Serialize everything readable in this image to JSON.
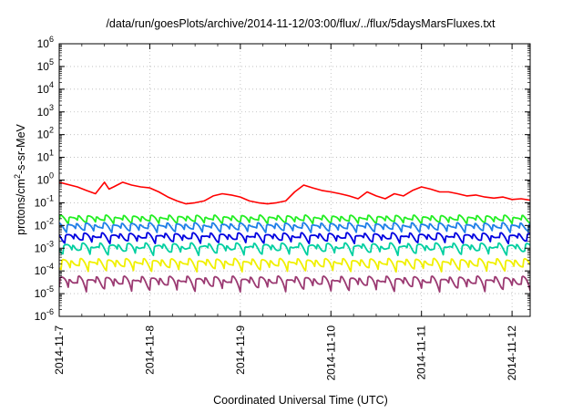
{
  "chart_data": {
    "type": "line",
    "title": "/data/run/goesPlots/archive/2014-11-12/03:00/flux/../flux/5daysMarsFluxes.txt",
    "xlabel": "Coordinated Universal Time (UTC)",
    "ylabel": {
      "base": "protons/cm",
      "sup": "2",
      "rest": "-s-sr-MeV"
    },
    "scale_y": "log",
    "ylim": [
      1e-06,
      1000000.0
    ],
    "y_ticks": [
      {
        "exp": "-6",
        "value": 1e-06
      },
      {
        "exp": "-5",
        "value": 1e-05
      },
      {
        "exp": "-4",
        "value": 0.0001
      },
      {
        "exp": "-3",
        "value": 0.001
      },
      {
        "exp": "-2",
        "value": 0.01
      },
      {
        "exp": "-1",
        "value": 0.1
      },
      {
        "exp": "0",
        "value": 1
      },
      {
        "exp": "1",
        "value": 10
      },
      {
        "exp": "2",
        "value": 100
      },
      {
        "exp": "3",
        "value": 1000
      },
      {
        "exp": "4",
        "value": 10000
      },
      {
        "exp": "5",
        "value": 100000
      },
      {
        "exp": "6",
        "value": 1000000
      }
    ],
    "x_ticks": [
      "2014-11-7",
      "2014-11-8",
      "2014-11-9",
      "2014-11-10",
      "2014-11-11",
      "2014-11-12"
    ],
    "xlim_days": [
      0,
      5.2
    ],
    "grid": true,
    "legend": "none",
    "series": [
      {
        "color": "#ff0000",
        "points": [
          [
            0,
            0.8
          ],
          [
            0.2,
            0.5
          ],
          [
            0.3,
            0.35
          ],
          [
            0.4,
            0.25
          ],
          [
            0.5,
            0.8
          ],
          [
            0.55,
            0.4
          ],
          [
            0.6,
            0.5
          ],
          [
            0.7,
            0.8
          ],
          [
            0.8,
            0.6
          ],
          [
            0.9,
            0.5
          ],
          [
            1.0,
            0.45
          ],
          [
            1.1,
            0.3
          ],
          [
            1.2,
            0.18
          ],
          [
            1.3,
            0.12
          ],
          [
            1.4,
            0.09
          ],
          [
            1.5,
            0.1
          ],
          [
            1.6,
            0.12
          ],
          [
            1.7,
            0.2
          ],
          [
            1.8,
            0.25
          ],
          [
            1.9,
            0.22
          ],
          [
            2.0,
            0.18
          ],
          [
            2.1,
            0.12
          ],
          [
            2.2,
            0.1
          ],
          [
            2.3,
            0.09
          ],
          [
            2.4,
            0.1
          ],
          [
            2.5,
            0.12
          ],
          [
            2.6,
            0.3
          ],
          [
            2.7,
            0.6
          ],
          [
            2.8,
            0.45
          ],
          [
            2.9,
            0.35
          ],
          [
            3.0,
            0.3
          ],
          [
            3.1,
            0.25
          ],
          [
            3.2,
            0.2
          ],
          [
            3.3,
            0.15
          ],
          [
            3.4,
            0.3
          ],
          [
            3.5,
            0.2
          ],
          [
            3.6,
            0.15
          ],
          [
            3.7,
            0.25
          ],
          [
            3.8,
            0.2
          ],
          [
            3.9,
            0.35
          ],
          [
            4.0,
            0.5
          ],
          [
            4.1,
            0.4
          ],
          [
            4.2,
            0.3
          ],
          [
            4.3,
            0.3
          ],
          [
            4.4,
            0.25
          ],
          [
            4.5,
            0.2
          ],
          [
            4.6,
            0.22
          ],
          [
            4.7,
            0.18
          ],
          [
            4.8,
            0.16
          ],
          [
            4.9,
            0.18
          ],
          [
            5.0,
            0.14
          ],
          [
            5.1,
            0.15
          ],
          [
            5.2,
            0.13
          ]
        ]
      },
      {
        "color": "#22ee22",
        "base": 0.022,
        "amp": 0.012,
        "jitter": 0.003,
        "phase": 0.0
      },
      {
        "color": "#1e7fe8",
        "base": 0.01,
        "amp": 0.006,
        "jitter": 0.0015,
        "phase": 0.02
      },
      {
        "color": "#0000e0",
        "base": 0.0035,
        "amp": 0.002,
        "jitter": 0.0007,
        "phase": 0.04
      },
      {
        "color": "#00cfa0",
        "base": 0.0012,
        "amp": 0.0007,
        "jitter": 0.0003,
        "phase": 0.06
      },
      {
        "color": "#f0f000",
        "base": 0.00025,
        "amp": 0.00018,
        "jitter": 5e-05,
        "phase": 0.08
      },
      {
        "color": "#9b3a72",
        "base": 4e-05,
        "amp": 3e-05,
        "jitter": 1e-05,
        "phase": 0.1
      }
    ]
  }
}
